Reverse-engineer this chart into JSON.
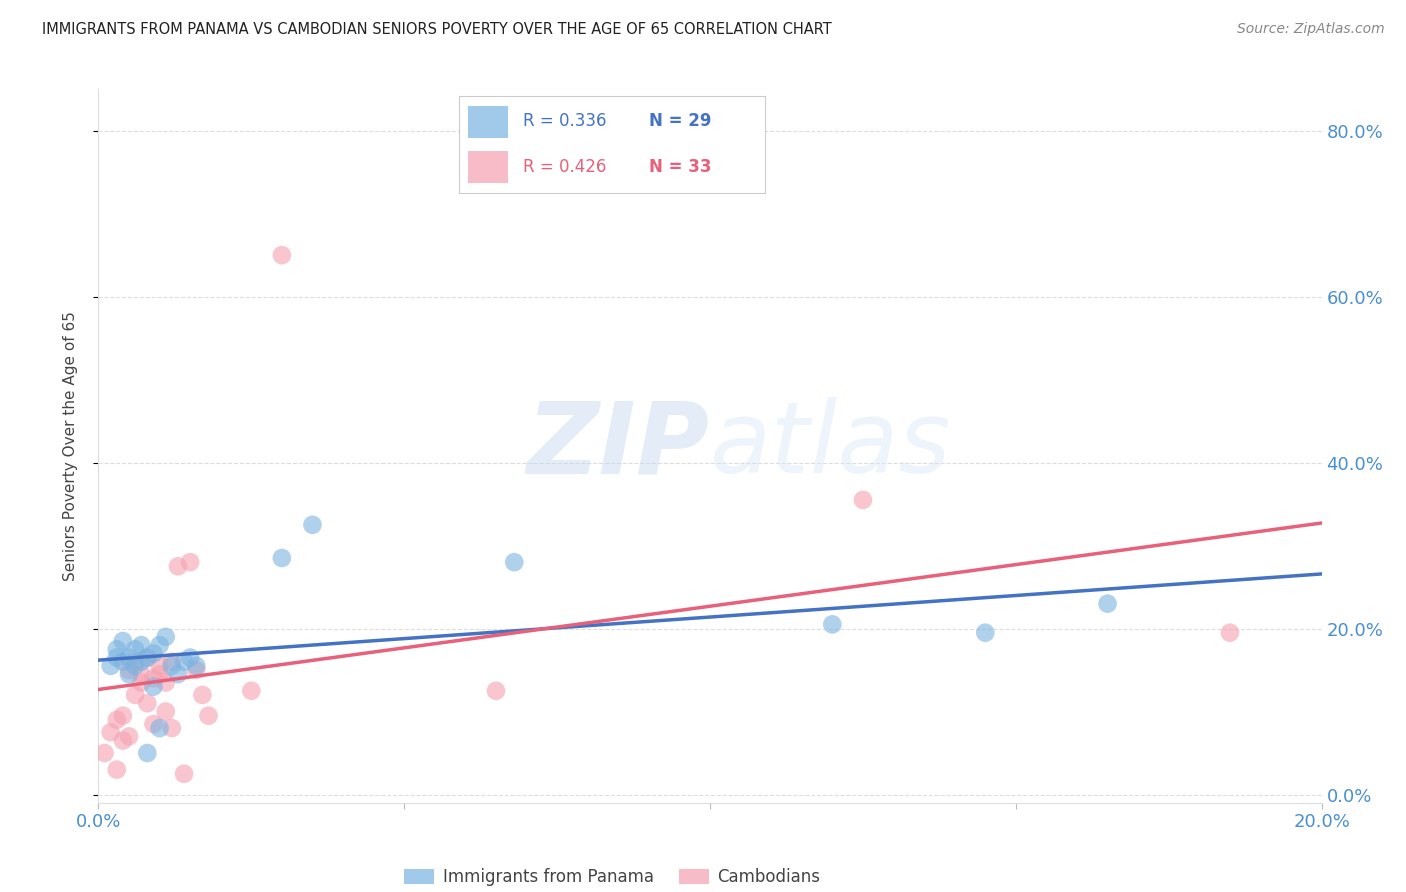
{
  "title": "IMMIGRANTS FROM PANAMA VS CAMBODIAN SENIORS POVERTY OVER THE AGE OF 65 CORRELATION CHART",
  "source": "Source: ZipAtlas.com",
  "ylabel": "Seniors Poverty Over the Age of 65",
  "xlim": [
    0.0,
    0.2
  ],
  "ylim": [
    -0.01,
    0.85
  ],
  "xticks": [
    0.0,
    0.05,
    0.1,
    0.15,
    0.2
  ],
  "yticks": [
    0.0,
    0.2,
    0.4,
    0.6,
    0.8
  ],
  "ytick_labels_right": [
    "0.0%",
    "20.0%",
    "40.0%",
    "60.0%",
    "80.0%"
  ],
  "xtick_labels_show": [
    "0.0%",
    "20.0%"
  ],
  "xtick_show_positions": [
    0.0,
    0.2
  ],
  "background_color": "#ffffff",
  "watermark_zip": "ZIP",
  "watermark_atlas": "atlas",
  "legend_r_panama": "R = 0.336",
  "legend_n_panama": "N = 29",
  "legend_r_cambodian": "R = 0.426",
  "legend_n_cambodian": "N = 33",
  "color_panama": "#7ab3e0",
  "color_cambodian": "#f5a0b0",
  "color_line_panama": "#4472c4",
  "color_line_cambodian": "#e8607a",
  "color_tick_label": "#4a90d0",
  "color_title": "#222222",
  "color_source": "#888888",
  "color_grid": "#dddddd",
  "panama_x": [
    0.002,
    0.003,
    0.003,
    0.004,
    0.004,
    0.005,
    0.005,
    0.006,
    0.006,
    0.007,
    0.007,
    0.008,
    0.008,
    0.009,
    0.009,
    0.01,
    0.01,
    0.011,
    0.012,
    0.013,
    0.014,
    0.015,
    0.016,
    0.03,
    0.035,
    0.068,
    0.12,
    0.145,
    0.165
  ],
  "panama_y": [
    0.155,
    0.175,
    0.165,
    0.16,
    0.185,
    0.165,
    0.145,
    0.175,
    0.155,
    0.18,
    0.16,
    0.165,
    0.05,
    0.17,
    0.13,
    0.08,
    0.18,
    0.19,
    0.155,
    0.145,
    0.16,
    0.165,
    0.155,
    0.285,
    0.325,
    0.28,
    0.205,
    0.195,
    0.23
  ],
  "cambodian_x": [
    0.001,
    0.002,
    0.003,
    0.003,
    0.004,
    0.004,
    0.005,
    0.005,
    0.006,
    0.006,
    0.007,
    0.007,
    0.008,
    0.008,
    0.009,
    0.009,
    0.01,
    0.01,
    0.011,
    0.011,
    0.012,
    0.012,
    0.013,
    0.014,
    0.015,
    0.016,
    0.017,
    0.018,
    0.025,
    0.03,
    0.065,
    0.125,
    0.185
  ],
  "cambodian_y": [
    0.05,
    0.075,
    0.03,
    0.09,
    0.065,
    0.095,
    0.07,
    0.15,
    0.12,
    0.16,
    0.135,
    0.145,
    0.11,
    0.165,
    0.085,
    0.14,
    0.145,
    0.155,
    0.135,
    0.1,
    0.08,
    0.16,
    0.275,
    0.025,
    0.28,
    0.15,
    0.12,
    0.095,
    0.125,
    0.65,
    0.125,
    0.355,
    0.195
  ]
}
